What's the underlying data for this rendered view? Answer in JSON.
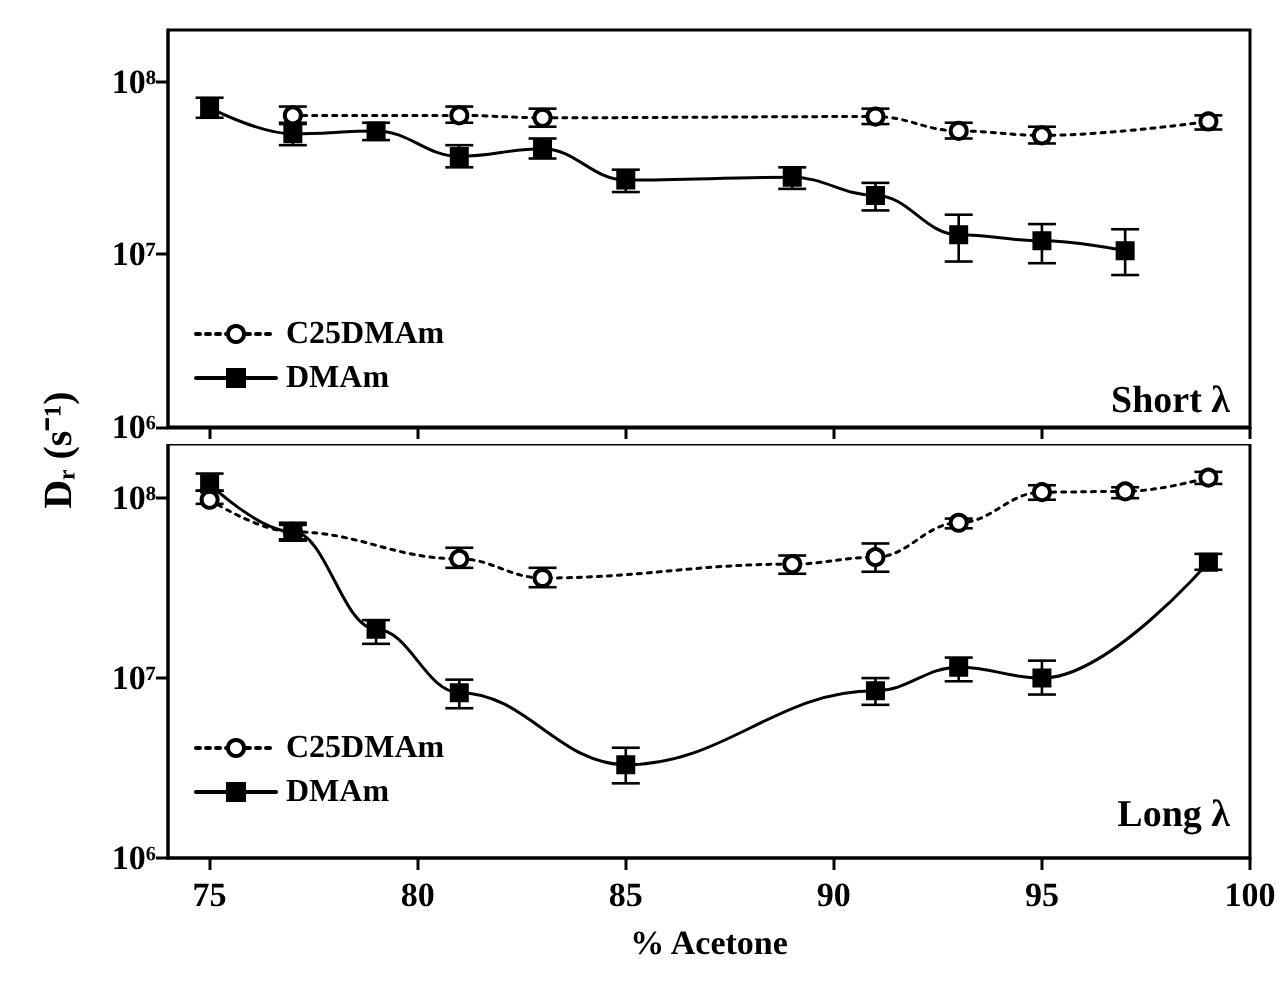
{
  "chart_data": [
    {
      "type": "line",
      "ylabel": "Dᵣ (s⁻¹)",
      "annotations": [
        "Short λ"
      ],
      "xlim": [
        74,
        100
      ],
      "xticks": [
        75,
        80,
        85,
        90,
        95,
        100
      ],
      "ylim": [
        1000000,
        200000000
      ],
      "yticks": [
        {
          "value": 1000000,
          "label": "10⁶"
        },
        {
          "value": 10000000,
          "label": "10⁷"
        },
        {
          "value": 100000000,
          "label": "10⁸"
        }
      ],
      "log": "y",
      "tick_labels": "y",
      "legend": "bottom left",
      "series": [
        {
          "name": "C25DMAm",
          "color": "#000000",
          "marker": "circle",
          "line_style": "dotted",
          "x": [
            77,
            81,
            83,
            91,
            93,
            95,
            99
          ],
          "values": [
            64000000,
            64000000,
            62000000,
            63000000,
            52000000,
            49000000,
            59000000
          ],
          "errors": [
            [
              57000000,
              72000000
            ],
            [
              58000000,
              72000000
            ],
            [
              55000000,
              70000000
            ],
            [
              57000000,
              70000000
            ],
            [
              47000000,
              58000000
            ],
            [
              44000000,
              55000000
            ],
            [
              53000000,
              64000000
            ]
          ]
        },
        {
          "name": "DMAm",
          "color": "#000000",
          "marker": "square",
          "line_style": "solid",
          "x": [
            75,
            77,
            79,
            81,
            83,
            85,
            89,
            91,
            93,
            95,
            97
          ],
          "values": [
            71000000,
            50000000,
            52000000,
            37000000,
            41000000,
            27000000,
            28000000,
            22000000,
            13000000,
            12000000,
            10500000
          ],
          "errors": [
            [
              62000000,
              81000000
            ],
            [
              43000000,
              58000000
            ],
            [
              46000000,
              58000000
            ],
            [
              32000000,
              43000000
            ],
            [
              36000000,
              47000000
            ],
            [
              23000000,
              31000000
            ],
            [
              24000000,
              32000000
            ],
            [
              18000000,
              26000000
            ],
            [
              9100000,
              17000000
            ],
            [
              8900000,
              15000000
            ],
            [
              7600000,
              14000000
            ]
          ]
        }
      ]
    },
    {
      "type": "line",
      "xlabel": "% Acetone",
      "annotations": [
        "Long λ"
      ],
      "xlim": [
        74,
        100
      ],
      "xticks": [
        75,
        80,
        85,
        90,
        95,
        100
      ],
      "ylim": [
        1000000,
        200000000
      ],
      "yticks": [
        {
          "value": 1000000,
          "label": "10⁶"
        },
        {
          "value": 10000000,
          "label": "10⁷"
        },
        {
          "value": 100000000,
          "label": "10⁸"
        }
      ],
      "log": "y",
      "legend": "bottom left",
      "series": [
        {
          "name": "C25DMAm",
          "color": "#000000",
          "marker": "circle",
          "line_style": "dotted",
          "x": [
            75,
            77,
            81,
            83,
            89,
            91,
            93,
            95,
            97,
            99
          ],
          "values": [
            98000000,
            65000000,
            46000000,
            36000000,
            43000000,
            47000000,
            73000000,
            108000000,
            109000000,
            130000000
          ],
          "errors": [
            [
              93000000,
              110000000
            ],
            [
              59000000,
              71000000
            ],
            [
              41000000,
              53000000
            ],
            [
              32000000,
              41000000
            ],
            [
              38000000,
              48000000
            ],
            [
              39000000,
              56000000
            ],
            [
              68000000,
              77000000
            ],
            [
              98000000,
              118000000
            ],
            [
              100000000,
              115000000
            ],
            [
              120000000,
              140000000
            ]
          ]
        },
        {
          "name": "DMAm",
          "color": "#000000",
          "marker": "square",
          "line_style": "solid",
          "x": [
            75,
            77,
            79,
            81,
            85,
            91,
            93,
            95,
            99
          ],
          "values": [
            120000000,
            65000000,
            18700000,
            8300000,
            3300000,
            8500000,
            11500000,
            10000000,
            44000000
          ],
          "errors": [
            [
              110000000,
              137000000
            ],
            [
              58000000,
              73000000
            ],
            [
              15500000,
              21000000
            ],
            [
              6800000,
              9800000
            ],
            [
              2600000,
              4100000
            ],
            [
              7100000,
              10000000
            ],
            [
              9600000,
              13000000
            ],
            [
              8100000,
              12500000
            ],
            [
              40000000,
              49000000
            ]
          ]
        }
      ]
    }
  ]
}
